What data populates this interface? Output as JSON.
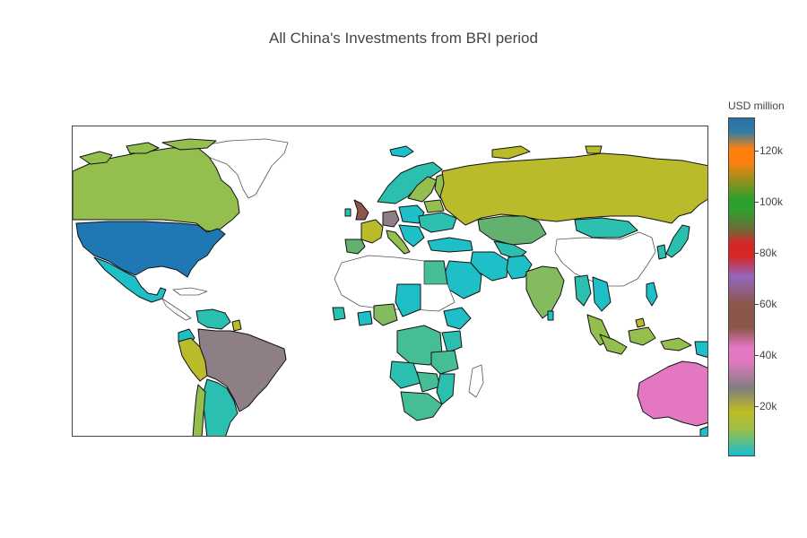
{
  "title": "All China's Investments from BRI period",
  "colorbar": {
    "title": "USD million",
    "ticks": [
      {
        "label": "120k",
        "value": 120000
      },
      {
        "label": "100k",
        "value": 100000
      },
      {
        "label": "80k",
        "value": 80000
      },
      {
        "label": "60k",
        "value": 60000
      },
      {
        "label": "40k",
        "value": 40000
      },
      {
        "label": "20k",
        "value": 20000
      }
    ],
    "range": [
      0,
      132000
    ],
    "colorscale": [
      "#17becf",
      "#bcbd22",
      "#7f7f7f",
      "#e377c2",
      "#8c564b",
      "#9467bd",
      "#d62728",
      "#2ca02c",
      "#ff7f0e",
      "#1f77b4"
    ]
  },
  "legend_position": "right"
}
